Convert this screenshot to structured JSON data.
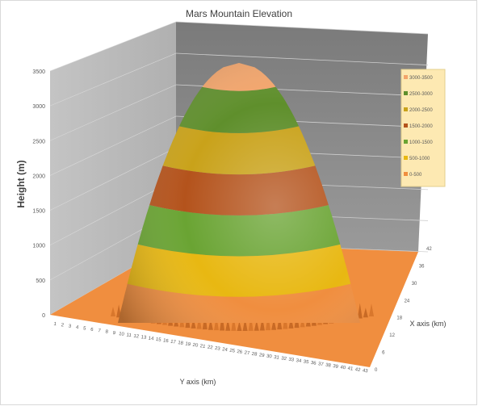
{
  "chart_data": {
    "type": "surface",
    "title": "Mars Mountain Elevation",
    "zlabel": "Height (m)",
    "xlabel": "Y axis (km)",
    "ylabel": "X axis (km)",
    "zlim": [
      0,
      3500
    ],
    "z_ticks": [
      "0",
      "500",
      "1000",
      "1500",
      "2000",
      "2500",
      "3000",
      "3500"
    ],
    "x_ticks": [
      "1",
      "2",
      "3",
      "4",
      "5",
      "6",
      "7",
      "8",
      "9",
      "10",
      "11",
      "12",
      "13",
      "14",
      "15",
      "16",
      "17",
      "18",
      "19",
      "20",
      "21",
      "22",
      "23",
      "24",
      "25",
      "26",
      "27",
      "28",
      "29",
      "30",
      "31",
      "32",
      "33",
      "34",
      "35",
      "36",
      "37",
      "38",
      "39",
      "40",
      "41",
      "42",
      "43"
    ],
    "y_ticks": [
      "0",
      "6",
      "12",
      "18",
      "24",
      "30",
      "36",
      "42"
    ],
    "surface": {
      "shape": "dome",
      "peak_height": 3300,
      "center_km": [
        21,
        21
      ],
      "base_radius_km": 19
    },
    "legend": {
      "position": "right",
      "entries": [
        {
          "label": "3000-3500",
          "color": "#f3a56b"
        },
        {
          "label": "2500-3000",
          "color": "#5f8f2c"
        },
        {
          "label": "2000-2500",
          "color": "#c9a21a"
        },
        {
          "label": "1500-2000",
          "color": "#b4531c"
        },
        {
          "label": "1000-1500",
          "color": "#6aa433"
        },
        {
          "label": "500-1000",
          "color": "#e8b812"
        },
        {
          "label": "0-500",
          "color": "#f08e3f"
        }
      ]
    },
    "band_colors": [
      "#f08e3f",
      "#e8b812",
      "#6aa433",
      "#b4531c",
      "#c9a21a",
      "#5f8f2c",
      "#f3a56b"
    ]
  }
}
